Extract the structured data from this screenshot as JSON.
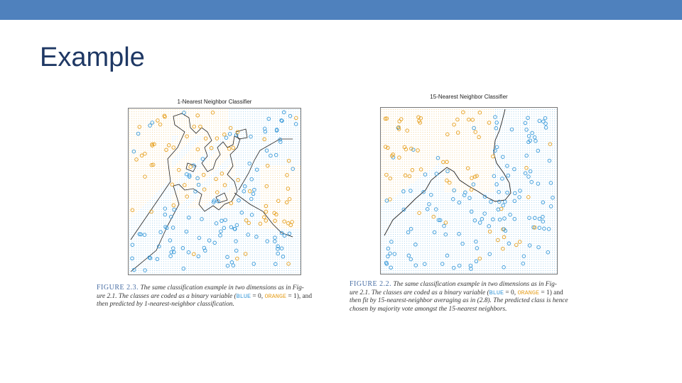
{
  "slide": {
    "title": "Example",
    "accent_color": "#4f81bd",
    "title_color": "#1f3864"
  },
  "colors": {
    "blue": "#3a9ad9",
    "orange": "#e6a020"
  },
  "plot_left": {
    "title": "1-Nearest Neighbor Classifier"
  },
  "plot_right": {
    "title": "15-Nearest Neighbor Classifier"
  },
  "caption_left": {
    "fig_label": "FIGURE 2.3.",
    "line1": "The same classification example in two dimensions as in Fig-",
    "line2_a": "ure 2.1. The classes are coded as a binary variable (",
    "blue_word": "BLUE",
    "eq0": " = 0, ",
    "orange_word": "ORANGE",
    "eq1": " = 1), and",
    "line3": "then predicted by 1-nearest-neighbor classification."
  },
  "caption_right": {
    "fig_label": "FIGURE 2.2.",
    "line1": "The same classification example in two dimensions as in Fig-",
    "line2_a": "ure 2.1. The classes are coded as a binary variable (",
    "blue_word": "BLUE",
    "eq0": " = 0, ",
    "orange_word": "ORANGE",
    "eq1": " = 1) and",
    "line3": "then fit by 15-nearest-neighbor averaging as in (2.8). The predicted class is hence",
    "line4": "chosen by majority vote amongst the 15-nearest neighbors."
  }
}
